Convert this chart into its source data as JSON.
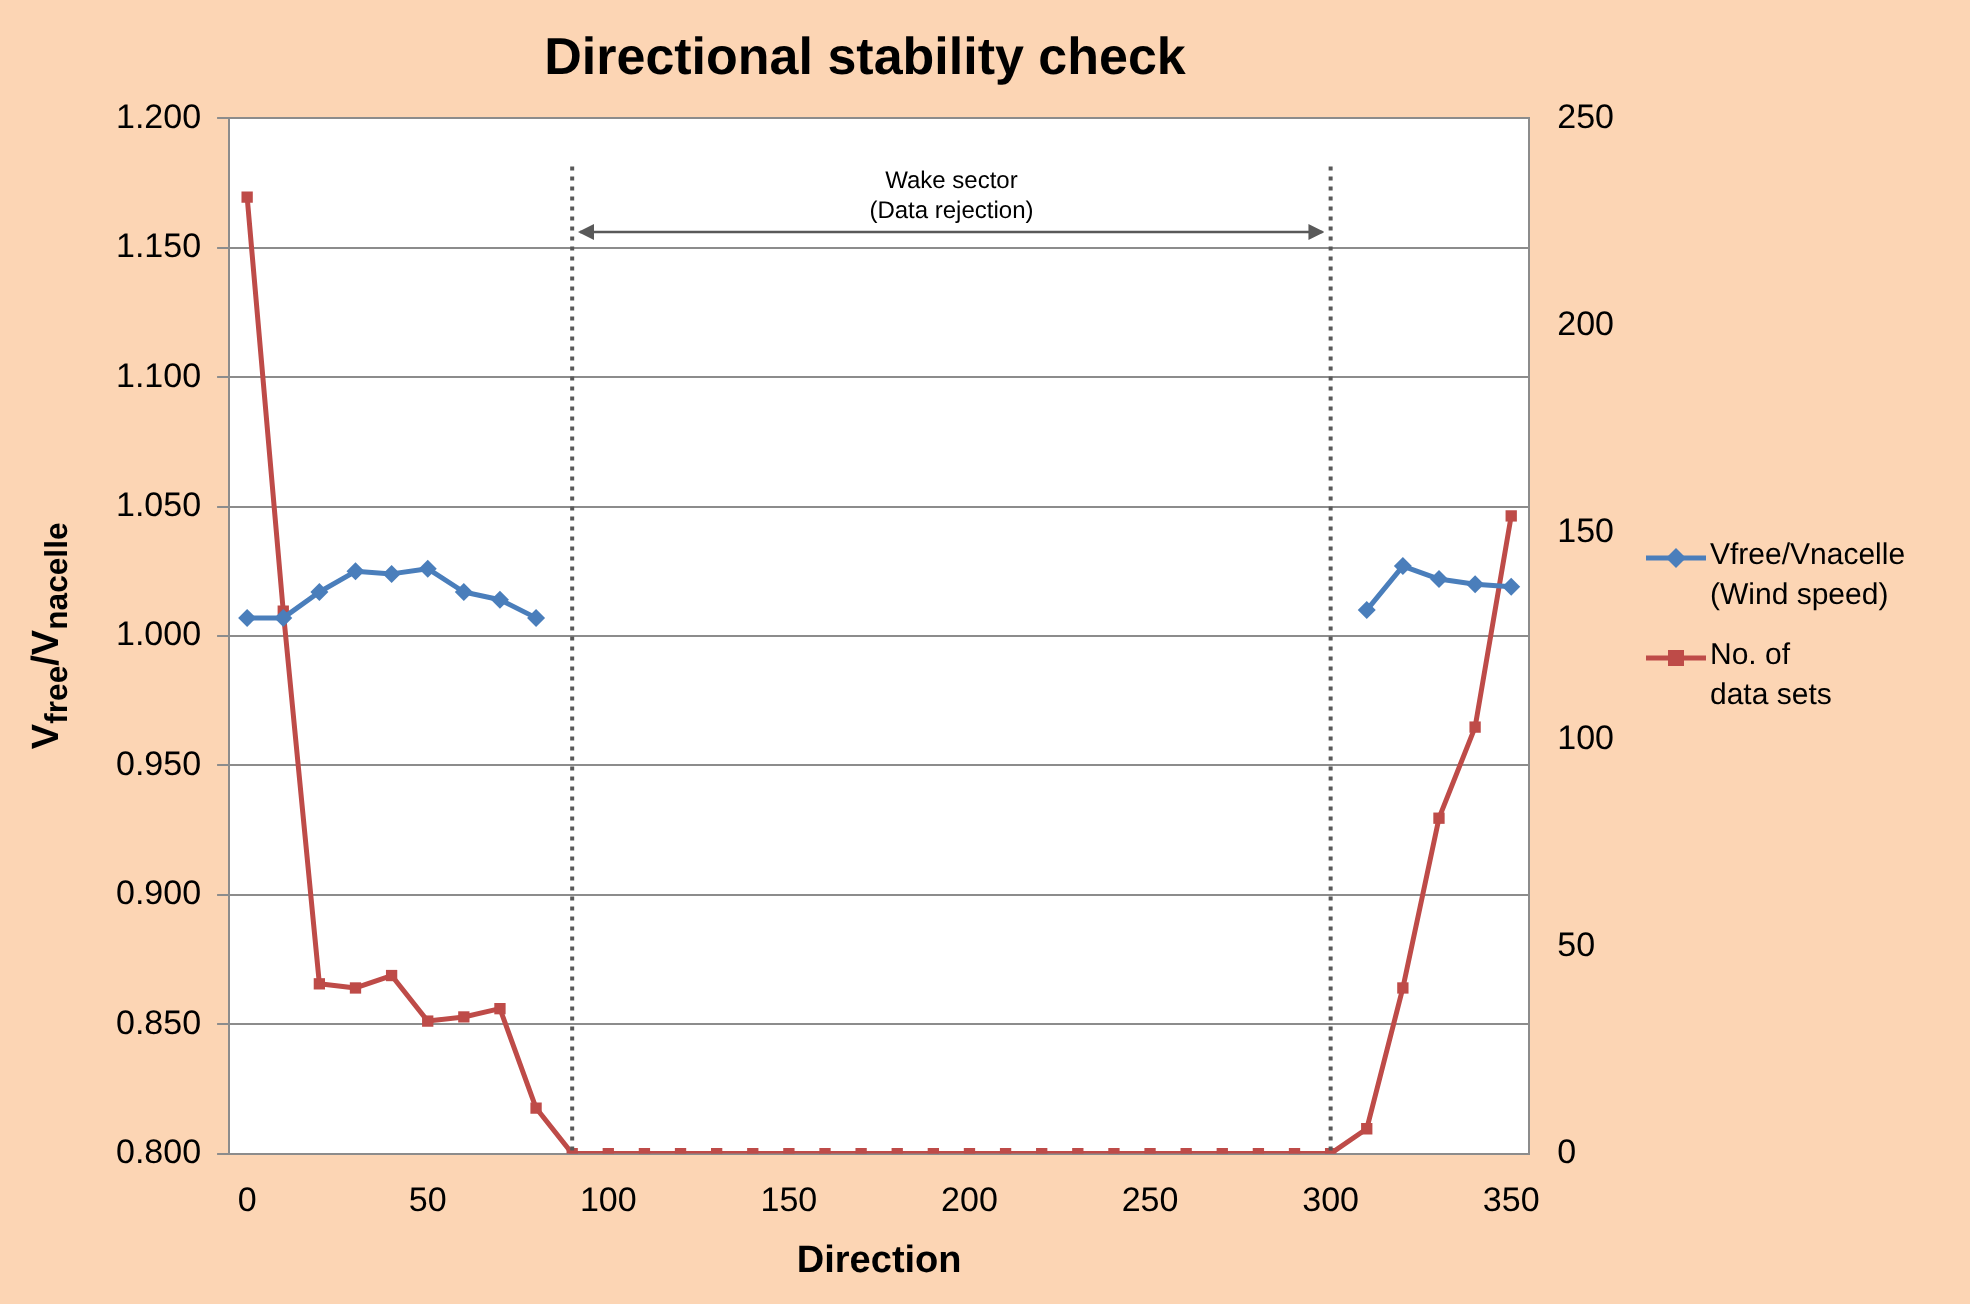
{
  "chart_data": {
    "type": "line",
    "title": "Directional stability check",
    "xlabel": "Direction",
    "ylabel": "V$_{free}$/V$_{nacelle}$",
    "x": [
      0,
      10,
      20,
      30,
      40,
      50,
      60,
      70,
      80,
      90,
      100,
      110,
      120,
      130,
      140,
      150,
      160,
      170,
      180,
      190,
      200,
      210,
      220,
      230,
      240,
      250,
      260,
      270,
      280,
      290,
      300,
      310,
      320,
      330,
      340,
      350
    ],
    "series": [
      {
        "name": "Vfree/Vnacelle\n(Wind speed)",
        "color": "#4a7ebb",
        "marker": "diamond",
        "values": [
          1.007,
          1.007,
          1.017,
          1.025,
          1.024,
          1.026,
          1.017,
          1.014,
          1.007,
          null,
          null,
          null,
          null,
          null,
          null,
          null,
          null,
          null,
          null,
          null,
          null,
          null,
          null,
          null,
          null,
          null,
          null,
          null,
          null,
          null,
          null,
          1.01,
          1.027,
          1.022,
          1.02,
          1.019
        ]
      },
      {
        "name": "No. of\ndata sets",
        "color": "#be4b48",
        "marker": "square",
        "axis": "y2",
        "values": [
          231,
          131,
          41,
          40,
          43,
          32,
          33,
          35,
          11,
          0,
          0,
          0,
          0,
          0,
          0,
          0,
          0,
          0,
          0,
          0,
          0,
          0,
          0,
          0,
          0,
          0,
          0,
          0,
          0,
          0,
          0,
          6,
          40,
          81,
          103,
          154
        ]
      }
    ],
    "xlim": [
      -5,
      355
    ],
    "xticks": [
      0,
      50,
      100,
      150,
      200,
      250,
      300,
      350
    ],
    "ylim": [
      0.8,
      1.2
    ],
    "yticks": [
      {
        "value": 0.8,
        "label": "0.800"
      },
      {
        "value": 0.85,
        "label": "0.850"
      },
      {
        "value": 0.9,
        "label": "0.900"
      },
      {
        "value": 0.95,
        "label": "0.950"
      },
      {
        "value": 1.0,
        "label": "1.000"
      },
      {
        "value": 1.05,
        "label": "1.050"
      },
      {
        "value": 1.1,
        "label": "1.100"
      },
      {
        "value": 1.15,
        "label": "1.150"
      },
      {
        "value": 1.2,
        "label": "1.200"
      }
    ],
    "y2lim": [
      0,
      250
    ],
    "y2ticks": [
      0,
      50,
      100,
      150,
      200,
      250
    ],
    "ref_lines": [
      {
        "axis": "x",
        "value": 90,
        "color": "#595959",
        "line_style": "dotted"
      },
      {
        "axis": "x",
        "value": 300,
        "color": "#595959",
        "line_style": "dotted"
      }
    ],
    "annotations": [
      "Wake sector\n(Data rejection)"
    ],
    "grid": "y",
    "legend": "right",
    "line_style": "solid"
  }
}
